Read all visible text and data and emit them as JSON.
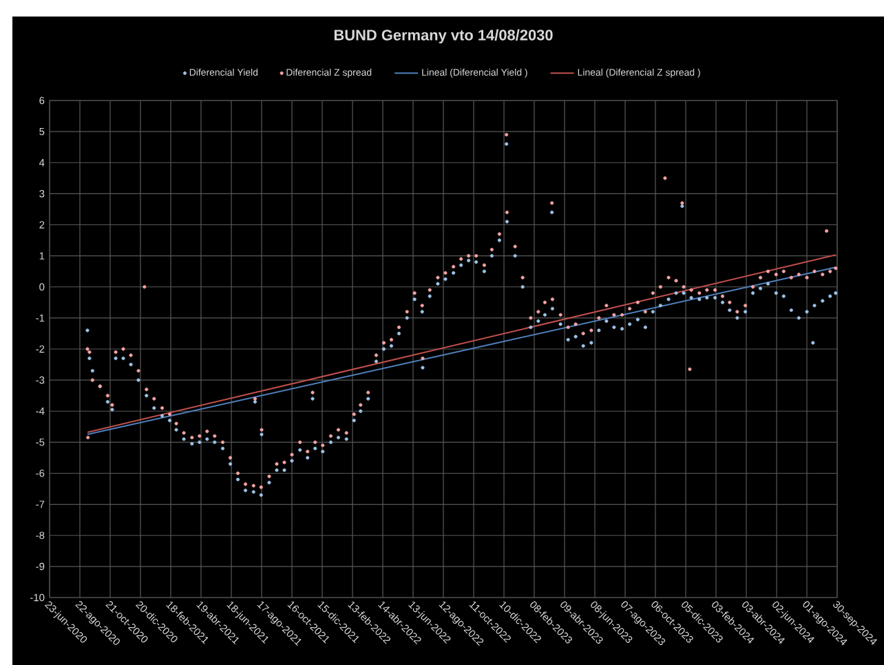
{
  "chart_data": {
    "type": "scatter",
    "title": "BUND Germany vto 14/08/2030",
    "xlim": [
      "2020-06-23",
      "2024-09-30"
    ],
    "ylim": [
      -10,
      6
    ],
    "yticks": [
      -10,
      -9,
      -8,
      -7,
      -6,
      -5,
      -4,
      -3,
      -2,
      -1,
      0,
      1,
      2,
      3,
      4,
      5,
      6
    ],
    "xticks": [
      {
        "value": "2020-06-23",
        "label": "23-jun-2020"
      },
      {
        "value": "2020-08-22",
        "label": "22-ago-2020"
      },
      {
        "value": "2020-10-21",
        "label": "21-oct-2020"
      },
      {
        "value": "2020-12-20",
        "label": "20-dic-2020"
      },
      {
        "value": "2021-02-18",
        "label": "18-feb-2021"
      },
      {
        "value": "2021-04-19",
        "label": "19-abr-2021"
      },
      {
        "value": "2021-06-18",
        "label": "18-jun-2021"
      },
      {
        "value": "2021-08-17",
        "label": "17-ago-2021"
      },
      {
        "value": "2021-10-16",
        "label": "16-oct-2021"
      },
      {
        "value": "2021-12-15",
        "label": "15-dic-2021"
      },
      {
        "value": "2022-02-13",
        "label": "13-feb-2022"
      },
      {
        "value": "2022-04-14",
        "label": "14-abr-2022"
      },
      {
        "value": "2022-06-13",
        "label": "13-jun-2022"
      },
      {
        "value": "2022-08-12",
        "label": "12-ago-2022"
      },
      {
        "value": "2022-10-11",
        "label": "11-oct-2022"
      },
      {
        "value": "2022-12-10",
        "label": "10-dic-2022"
      },
      {
        "value": "2023-02-08",
        "label": "08-feb-2023"
      },
      {
        "value": "2023-04-09",
        "label": "09-abr-2023"
      },
      {
        "value": "2023-06-08",
        "label": "08-jun-2023"
      },
      {
        "value": "2023-08-07",
        "label": "07-ago-2023"
      },
      {
        "value": "2023-10-06",
        "label": "06-oct-2023"
      },
      {
        "value": "2023-12-05",
        "label": "05-dic-2023"
      },
      {
        "value": "2024-02-03",
        "label": "03-feb-2024"
      },
      {
        "value": "2024-04-03",
        "label": "03-abr-2024"
      },
      {
        "value": "2024-06-02",
        "label": "02-jun-2024"
      },
      {
        "value": "2024-08-01",
        "label": "01-ago-2024"
      },
      {
        "value": "2024-09-30",
        "label": "30-sep-2024"
      }
    ],
    "grid": true,
    "legend": "top",
    "series": [
      {
        "name": "Diferencial Yield",
        "marker": "circle",
        "color": "#9dc3e6",
        "x": [
          "2020-09-06",
          "2020-09-10",
          "2020-09-16",
          "2020-10-01",
          "2020-10-16",
          "2020-10-25",
          "2020-11-01",
          "2020-11-16",
          "2020-12-01",
          "2020-12-16",
          "2021-01-01",
          "2021-01-16",
          "2021-02-01",
          "2021-02-16",
          "2021-03-01",
          "2021-03-16",
          "2021-04-01",
          "2021-04-16",
          "2021-05-01",
          "2021-05-16",
          "2021-06-01",
          "2021-06-16",
          "2021-07-01",
          "2021-07-16",
          "2021-08-01",
          "2021-08-16",
          "2021-09-01",
          "2021-09-16",
          "2021-10-01",
          "2021-10-16",
          "2021-11-01",
          "2021-11-16",
          "2021-12-01",
          "2021-12-16",
          "2022-01-01",
          "2022-01-16",
          "2022-02-01",
          "2022-02-16",
          "2022-03-01",
          "2022-03-16",
          "2022-04-01",
          "2022-04-16",
          "2022-05-01",
          "2022-05-16",
          "2022-06-01",
          "2022-06-16",
          "2022-07-01",
          "2022-07-16",
          "2022-08-01",
          "2022-08-16",
          "2022-09-01",
          "2022-09-16",
          "2022-10-01",
          "2022-10-16",
          "2022-11-01",
          "2022-11-16",
          "2022-12-01",
          "2022-12-16",
          "2023-01-01",
          "2023-01-16",
          "2023-02-01",
          "2023-02-16",
          "2023-03-01",
          "2023-03-16",
          "2023-04-01",
          "2023-04-16",
          "2023-05-01",
          "2023-05-16",
          "2023-06-01",
          "2023-06-16",
          "2023-07-01",
          "2023-07-16",
          "2023-08-01",
          "2023-08-16",
          "2023-09-01",
          "2023-09-16",
          "2023-10-01",
          "2023-10-16",
          "2023-11-01",
          "2023-11-16",
          "2023-12-01",
          "2023-12-16",
          "2024-01-01",
          "2024-01-16",
          "2024-02-01",
          "2024-02-16",
          "2024-03-01",
          "2024-03-16",
          "2024-04-01",
          "2024-04-16",
          "2024-05-01",
          "2024-05-16",
          "2024-06-01",
          "2024-06-16",
          "2024-07-01",
          "2024-07-16",
          "2024-08-01",
          "2024-08-16",
          "2024-09-01",
          "2024-09-16",
          "2024-09-27",
          "2021-08-04",
          "2021-08-17",
          "2021-11-26",
          "2022-07-02",
          "2022-12-15",
          "2023-03-15",
          "2023-11-28",
          "2024-08-13"
        ],
        "values": [
          -1.4,
          -2.3,
          -2.7,
          -3.2,
          -3.7,
          -3.95,
          -2.3,
          -2.3,
          -2.5,
          -3.0,
          -3.5,
          -3.9,
          -4.15,
          -4.3,
          -4.6,
          -4.9,
          -5.05,
          -5.0,
          -4.9,
          -5.0,
          -5.2,
          -5.7,
          -6.2,
          -6.55,
          -6.6,
          -6.7,
          -6.3,
          -5.9,
          -5.9,
          -5.6,
          -5.25,
          -5.5,
          -5.2,
          -5.3,
          -5.0,
          -4.85,
          -4.9,
          -4.3,
          -4.0,
          -3.6,
          -2.4,
          -2.0,
          -1.9,
          -1.5,
          -1.0,
          -0.4,
          -0.8,
          -0.3,
          0.1,
          0.25,
          0.45,
          0.7,
          0.85,
          0.8,
          0.5,
          1.0,
          1.5,
          2.1,
          1.0,
          0.0,
          -1.3,
          -1.1,
          -0.9,
          -0.7,
          -1.2,
          -1.7,
          -1.6,
          -1.9,
          -1.8,
          -1.4,
          -1.1,
          -1.3,
          -1.35,
          -1.2,
          -1.05,
          -1.3,
          -0.8,
          -0.6,
          -0.4,
          -0.2,
          -0.2,
          -0.35,
          -0.4,
          -0.35,
          -0.35,
          -0.5,
          -0.75,
          -1.0,
          -0.8,
          -0.2,
          -0.05,
          0.1,
          -0.2,
          -0.3,
          -0.75,
          -1.0,
          -0.8,
          -0.6,
          -0.45,
          -0.3,
          -0.2,
          -3.7,
          -4.75,
          -3.6,
          -2.6,
          4.6,
          2.4,
          2.6,
          -1.8
        ]
      },
      {
        "name": "Diferencial Z spread",
        "marker": "circle",
        "color": "#f4a3a3",
        "x": [
          "2020-09-06",
          "2020-09-10",
          "2020-09-16",
          "2020-10-01",
          "2020-10-16",
          "2020-10-25",
          "2020-11-01",
          "2020-11-16",
          "2020-12-01",
          "2020-12-16",
          "2021-01-01",
          "2021-01-16",
          "2021-02-01",
          "2021-02-16",
          "2021-03-01",
          "2021-03-16",
          "2021-04-01",
          "2021-04-16",
          "2021-05-01",
          "2021-05-16",
          "2021-06-01",
          "2021-06-16",
          "2021-07-01",
          "2021-07-16",
          "2021-08-01",
          "2021-08-16",
          "2021-09-01",
          "2021-09-16",
          "2021-10-01",
          "2021-10-16",
          "2021-11-01",
          "2021-11-16",
          "2021-12-01",
          "2021-12-16",
          "2022-01-01",
          "2022-01-16",
          "2022-02-01",
          "2022-02-16",
          "2022-03-01",
          "2022-03-16",
          "2022-04-01",
          "2022-04-16",
          "2022-05-01",
          "2022-05-16",
          "2022-06-01",
          "2022-06-16",
          "2022-07-01",
          "2022-07-16",
          "2022-08-01",
          "2022-08-16",
          "2022-09-01",
          "2022-09-16",
          "2022-10-01",
          "2022-10-16",
          "2022-11-01",
          "2022-11-16",
          "2022-12-01",
          "2022-12-16",
          "2023-01-01",
          "2023-01-16",
          "2023-02-01",
          "2023-02-16",
          "2023-03-01",
          "2023-03-16",
          "2023-04-01",
          "2023-04-16",
          "2023-05-01",
          "2023-05-16",
          "2023-06-01",
          "2023-06-16",
          "2023-07-01",
          "2023-07-16",
          "2023-08-01",
          "2023-08-16",
          "2023-09-01",
          "2023-09-16",
          "2023-10-01",
          "2023-10-16",
          "2023-11-01",
          "2023-11-16",
          "2023-12-01",
          "2023-12-16",
          "2024-01-01",
          "2024-01-16",
          "2024-02-01",
          "2024-02-16",
          "2024-03-01",
          "2024-03-16",
          "2024-04-01",
          "2024-04-16",
          "2024-05-01",
          "2024-05-16",
          "2024-06-01",
          "2024-06-16",
          "2024-07-01",
          "2024-07-16",
          "2024-08-01",
          "2024-08-16",
          "2024-09-01",
          "2024-09-16",
          "2024-09-27",
          "2020-09-07",
          "2020-12-28",
          "2021-08-04",
          "2021-08-17",
          "2021-11-26",
          "2022-07-02",
          "2022-12-15",
          "2023-03-15",
          "2023-10-25",
          "2023-11-28",
          "2023-12-13",
          "2024-09-09"
        ],
        "values": [
          -2.0,
          -2.1,
          -3.0,
          -3.2,
          -3.5,
          -3.8,
          -2.1,
          -2.0,
          -2.2,
          -2.7,
          -3.3,
          -3.6,
          -3.9,
          -4.1,
          -4.4,
          -4.7,
          -4.85,
          -4.8,
          -4.65,
          -4.8,
          -5.0,
          -5.5,
          -6.0,
          -6.35,
          -6.4,
          -6.45,
          -6.1,
          -5.7,
          -5.65,
          -5.4,
          -5.0,
          -5.3,
          -5.0,
          -5.1,
          -4.8,
          -4.6,
          -4.7,
          -4.1,
          -3.8,
          -3.4,
          -2.2,
          -1.8,
          -1.7,
          -1.3,
          -0.8,
          -0.2,
          -0.6,
          -0.1,
          0.3,
          0.45,
          0.65,
          0.9,
          1.0,
          1.0,
          0.7,
          1.2,
          1.7,
          2.4,
          1.3,
          0.3,
          -1.0,
          -0.8,
          -0.5,
          -0.4,
          -0.9,
          -1.3,
          -1.2,
          -1.5,
          -1.4,
          -1.0,
          -0.6,
          -0.9,
          -0.9,
          -0.7,
          -0.5,
          -0.8,
          -0.2,
          0.0,
          0.3,
          0.2,
          0.0,
          -0.1,
          -0.2,
          -0.1,
          -0.1,
          -0.3,
          -0.5,
          -0.8,
          -0.6,
          0.0,
          0.3,
          0.5,
          0.4,
          0.5,
          0.3,
          0.4,
          0.3,
          0.5,
          0.4,
          0.5,
          0.6,
          -4.85,
          0.0,
          -3.6,
          -4.6,
          -3.4,
          -2.3,
          4.9,
          2.7,
          3.5,
          2.7,
          -2.65,
          1.8
        ]
      },
      {
        "name": "Lineal (Diferencial Yield )",
        "type": "line",
        "marker": "none",
        "color": "#4f81bd",
        "x": [
          "2020-09-06",
          "2024-09-27"
        ],
        "values": [
          -4.75,
          0.63
        ]
      },
      {
        "name": "Lineal (Diferencial Z spread )",
        "type": "line",
        "marker": "none",
        "color": "#c0504d",
        "x": [
          "2020-09-06",
          "2024-09-27"
        ],
        "values": [
          -4.68,
          1.03
        ]
      }
    ]
  }
}
